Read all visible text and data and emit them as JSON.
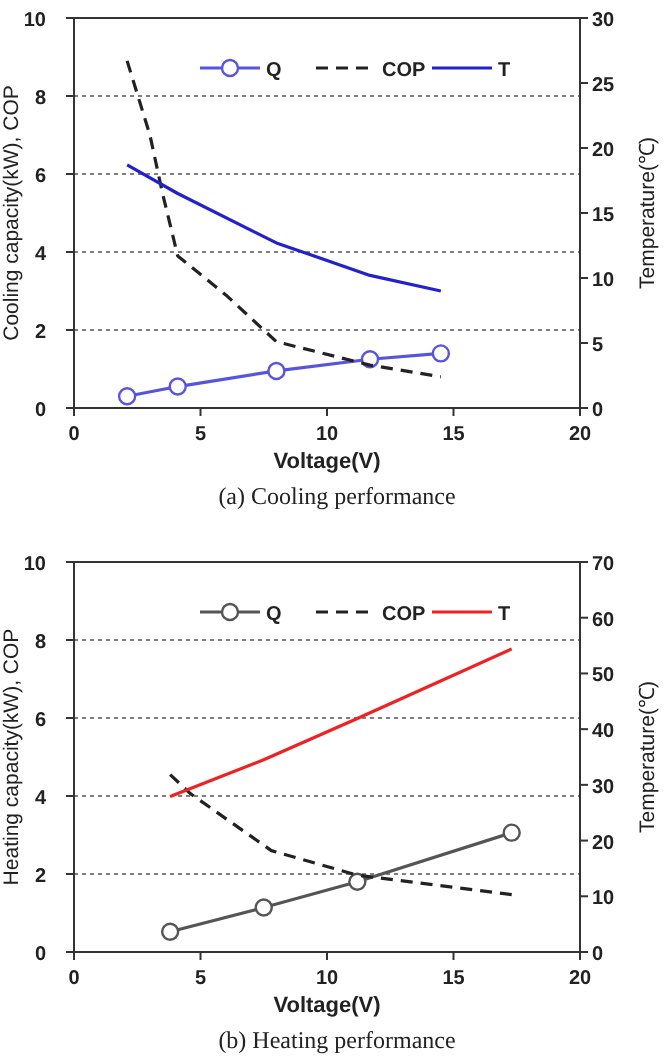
{
  "chart_data": [
    {
      "type": "line",
      "title": "(a)  Cooling  performance",
      "xlabel": "Voltage(V)",
      "ylabel": "Cooling capacity(kW), COP",
      "y2label": "Temperature(℃)",
      "xlim": [
        0,
        20
      ],
      "xticks": [
        0,
        5,
        10,
        15,
        20
      ],
      "ylim": [
        0,
        10
      ],
      "yticks": [
        0,
        2,
        4,
        6,
        8,
        10
      ],
      "y2lim": [
        0,
        30
      ],
      "y2ticks": [
        0,
        5,
        10,
        15,
        20,
        25,
        30
      ],
      "grid": "y",
      "legend": "top",
      "series": [
        {
          "name": "Q",
          "color": "#5555dd",
          "marker": "circle",
          "line_style": "solid",
          "x": [
            2.1,
            4.1,
            8,
            11.7,
            14.5
          ],
          "values": [
            0.3,
            0.55,
            0.95,
            1.25,
            1.4
          ]
        },
        {
          "name": "COP",
          "color": "#222222",
          "marker": "none",
          "line_style": "dashed",
          "x": [
            2.1,
            3,
            3.5,
            4.1,
            6,
            8,
            11.7,
            14.5
          ],
          "values": [
            8.9,
            7,
            5.5,
            3.9,
            2.9,
            1.7,
            1.1,
            0.8
          ]
        },
        {
          "name": "T",
          "color": "#2222cc",
          "marker": "none",
          "line_style": "solid",
          "axis": "y2",
          "x": [
            2.1,
            4.1,
            8,
            11.7,
            14.5
          ],
          "values": [
            18.7,
            16.5,
            12.7,
            10.2,
            9.0
          ]
        }
      ]
    },
    {
      "type": "line",
      "title": "(b)  Heating  performance",
      "xlabel": "Voltage(V)",
      "ylabel": "Heating capacity(kW), COP",
      "y2label": "Temperature(℃)",
      "xlim": [
        0,
        20
      ],
      "xticks": [
        0,
        5,
        10,
        15,
        20
      ],
      "ylim": [
        0,
        10
      ],
      "yticks": [
        0,
        2,
        4,
        6,
        8,
        10
      ],
      "y2lim": [
        0,
        70
      ],
      "y2ticks": [
        0,
        10,
        20,
        30,
        40,
        50,
        60,
        70
      ],
      "grid": "y",
      "legend": "top",
      "series": [
        {
          "name": "Q",
          "color": "#555555",
          "marker": "circle",
          "line_style": "solid",
          "x": [
            3.8,
            7.5,
            11.2,
            17.3
          ],
          "values": [
            0.52,
            1.14,
            1.8,
            3.06
          ]
        },
        {
          "name": "COP",
          "color": "#222222",
          "marker": "none",
          "line_style": "dashed",
          "x": [
            3.8,
            4.6,
            7.8,
            11.2,
            17.3
          ],
          "values": [
            4.55,
            4.06,
            2.6,
            1.97,
            1.47
          ]
        },
        {
          "name": "T",
          "color": "#ee2222",
          "marker": "none",
          "line_style": "solid",
          "axis": "y2",
          "x": [
            3.8,
            7.5,
            11.2,
            17.3
          ],
          "values": [
            27.9,
            34.5,
            41.9,
            54.4
          ]
        }
      ]
    }
  ]
}
